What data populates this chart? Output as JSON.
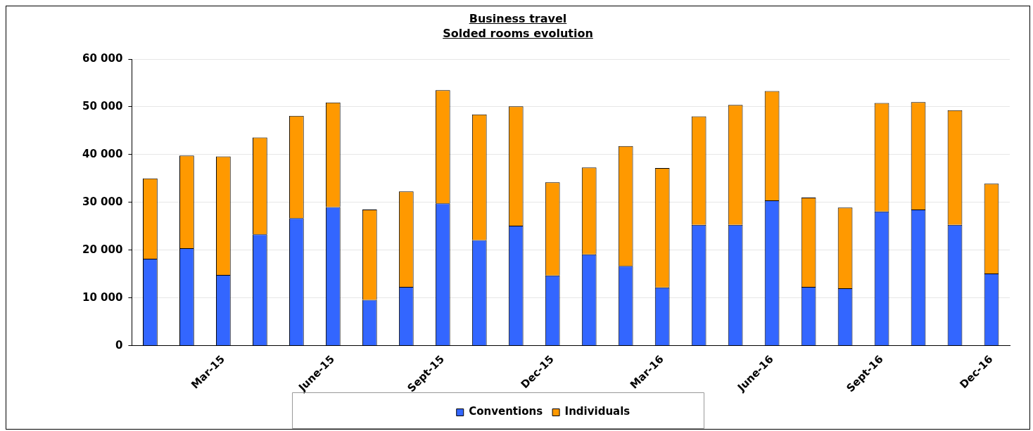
{
  "chart_data": {
    "type": "bar",
    "title": "Business travel",
    "subtitle": "Solded rooms evolution",
    "categories": [
      null,
      null,
      "Mar-15",
      null,
      null,
      "June-15",
      null,
      null,
      "Sept-15",
      null,
      null,
      "Dec-15",
      null,
      null,
      "Mar-16",
      null,
      null,
      "June-16",
      null,
      null,
      "Sept-16",
      null,
      null,
      "Dec-16"
    ],
    "stacked": true,
    "series": [
      {
        "name": "Conventions",
        "color": "#3366ff",
        "values": [
          18200,
          20400,
          14800,
          23300,
          26700,
          29000,
          9600,
          12300,
          29800,
          22100,
          25100,
          14700,
          19100,
          16700,
          12200,
          25300,
          25300,
          30400,
          12300,
          12000,
          28100,
          28500,
          25300,
          15100
        ]
      },
      {
        "name": "Individuals",
        "color": "#ff9900",
        "values": [
          16800,
          19400,
          24800,
          20300,
          21400,
          21900,
          18900,
          20000,
          23700,
          26300,
          25000,
          19500,
          18200,
          25100,
          25000,
          22700,
          25100,
          22900,
          18700,
          16900,
          22700,
          22500,
          24000,
          18800
        ]
      }
    ],
    "ylim": [
      0,
      60000
    ],
    "yticks": [
      {
        "value": 0,
        "label": "0"
      },
      {
        "value": 10000,
        "label": "10 000"
      },
      {
        "value": 20000,
        "label": "20 000"
      },
      {
        "value": 30000,
        "label": "30 000"
      },
      {
        "value": 40000,
        "label": "40 000"
      },
      {
        "value": 50000,
        "label": "50 000"
      },
      {
        "value": 60000,
        "label": "60 000"
      }
    ],
    "grid": "y",
    "legend": "bottom"
  }
}
